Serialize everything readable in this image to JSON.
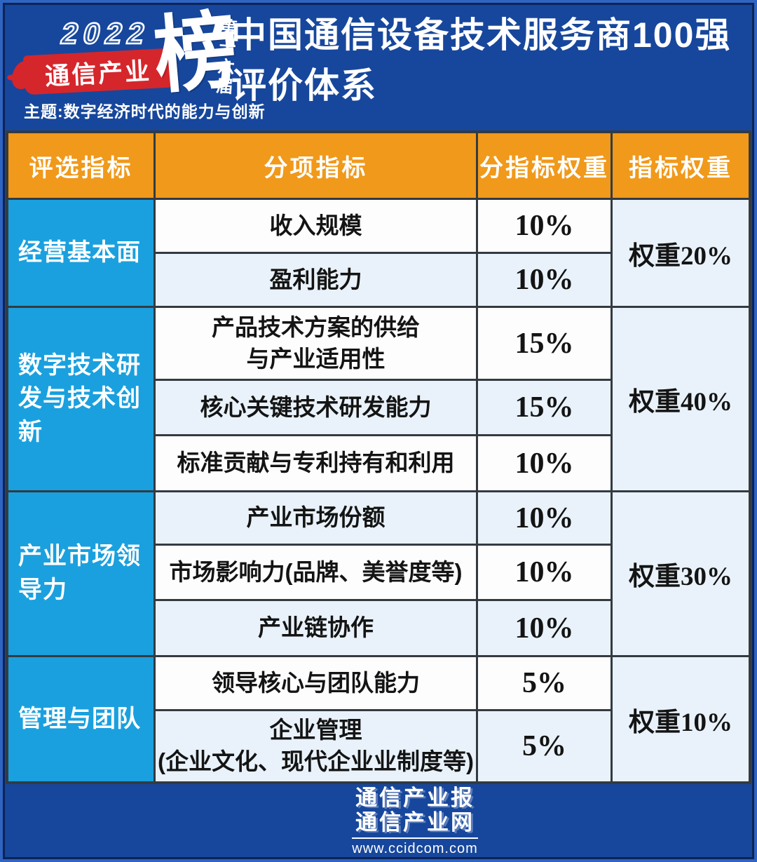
{
  "colors": {
    "background_blue": "#17479c",
    "header_orange": "#f0991b",
    "category_blue": "#1aa0de",
    "brush_red": "#d5262c",
    "row_white": "#fdfdfd",
    "row_tint": "#e9f2fa",
    "table_border": "#333b41"
  },
  "logo": {
    "year": "2022",
    "brand": "通信产业",
    "bang": "榜",
    "edition": "第十六届",
    "theme": "主题:数字经济时代的能力与创新"
  },
  "title": {
    "line1": "中国通信设备技术服务商100强",
    "line2": "评价体系"
  },
  "table": {
    "headers": [
      "评选指标",
      "分项指标",
      "分指标权重",
      "指标权重"
    ],
    "sections": [
      {
        "category": "经营基本面",
        "weight": "权重20%",
        "rows": [
          {
            "label": "收入规模",
            "value": "10%"
          },
          {
            "label": "盈利能力",
            "value": "10%"
          }
        ]
      },
      {
        "category": "数字技术研发与技术创新",
        "weight": "权重40%",
        "rows": [
          {
            "label": "产品技术方案的供给\n与产业适用性",
            "value": "15%"
          },
          {
            "label": "核心关键技术研发能力",
            "value": "15%"
          },
          {
            "label": "标准贡献与专利持有和利用",
            "value": "10%"
          }
        ]
      },
      {
        "category": "产业市场领导力",
        "weight": "权重30%",
        "rows": [
          {
            "label": "产业市场份额",
            "value": "10%"
          },
          {
            "label": "市场影响力(品牌、美誉度等)",
            "value": "10%"
          },
          {
            "label": "产业链协作",
            "value": "10%"
          }
        ]
      },
      {
        "category": "管理与团队",
        "weight": "权重10%",
        "rows": [
          {
            "label": "领导核心与团队能力",
            "value": "5%"
          },
          {
            "label": "企业管理\n(企业文化、现代企业业制度等)",
            "value": "5%"
          }
        ]
      }
    ]
  },
  "footer": {
    "line1": "通信产业报",
    "line2": "通信产业网",
    "url": "www.ccidcom.com"
  }
}
